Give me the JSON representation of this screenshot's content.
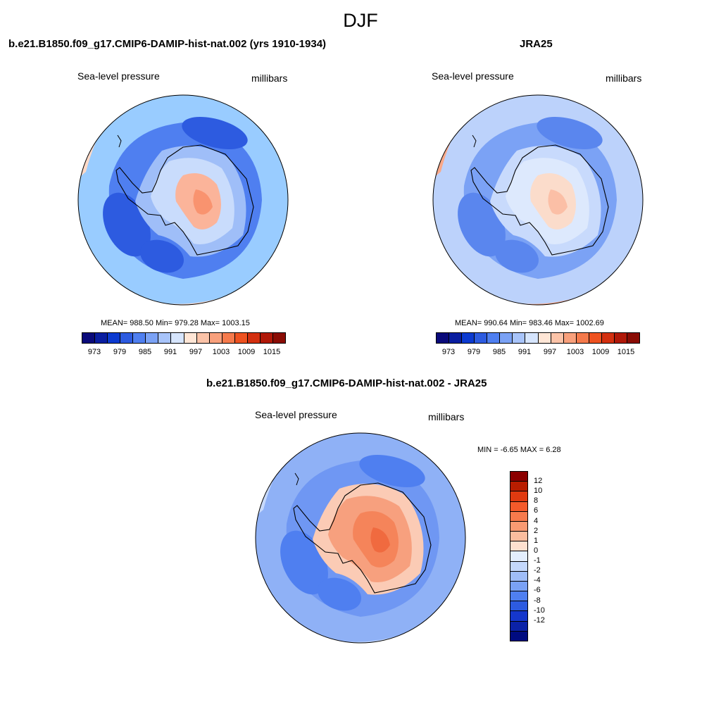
{
  "title": "DJF",
  "panels": [
    {
      "title": "b.e21.B1850.f09_g17.CMIP6-DAMIP-hist-nat.002 (yrs 1910-1934)",
      "variable": "Sea-level pressure",
      "units": "millibars",
      "stats": "MEAN= 988.50  Min= 979.28  Max= 1003.15",
      "colors": [
        "#99ccff",
        "#ffd9c7",
        "#4f7ff0",
        "#2d5be0",
        "#9fbef8",
        "#c9dcfc",
        "#fbb49a",
        "#f9936f"
      ]
    },
    {
      "title": "JRA25",
      "variable": "Sea-level pressure",
      "units": "millibars",
      "stats": "MEAN= 990.64  Min= 983.46  Max= 1002.69",
      "colors": [
        "#bcd2fb",
        "#f9a98a",
        "#7ba2f5",
        "#5a86ee",
        "#c8dafc",
        "#dde9fd",
        "#fbdccb",
        "#fbbfa6"
      ]
    },
    {
      "title": "b.e21.B1850.f09_g17.CMIP6-DAMIP-hist-nat.002 - JRA25",
      "variable": "Sea-level pressure",
      "units": "millibars",
      "stats": "MIN =  -6.65 MAX =   6.28",
      "colors": [
        "#8fb1f6",
        "#c8dafc",
        "#6f97f3",
        "#4f7ff0",
        "#fbcbb5",
        "#f7a07e",
        "#f5845a",
        "#f06a3f"
      ]
    }
  ],
  "abs_colorbar": {
    "colors": [
      "#0a0a7a",
      "#0a1ea0",
      "#0c3ad0",
      "#2d5be0",
      "#4f7ff0",
      "#7ba2f5",
      "#a8c4fa",
      "#d6e5fd",
      "#ffe6d6",
      "#fbc3a8",
      "#f8a07c",
      "#f57a4c",
      "#ee5220",
      "#d33010",
      "#b01808",
      "#8a0c04"
    ],
    "labels": [
      "973",
      "979",
      "985",
      "991",
      "997",
      "1003",
      "1009",
      "1015"
    ]
  },
  "diff_colorbar": {
    "colors": [
      "#8b0000",
      "#b81d00",
      "#e03a10",
      "#f55a2a",
      "#f77a4c",
      "#f99a72",
      "#fbbd9e",
      "#fde0cf",
      "#e3eefd",
      "#c4d8fc",
      "#9fbdf8",
      "#7aa1f4",
      "#4f7ff0",
      "#2d5be0",
      "#1537cc",
      "#0b22a8",
      "#000b80"
    ],
    "labels": [
      "12",
      "10",
      "8",
      "6",
      "4",
      "2",
      "1",
      "0",
      "-1",
      "-2",
      "-4",
      "-6",
      "-8",
      "-10",
      "-12"
    ]
  }
}
